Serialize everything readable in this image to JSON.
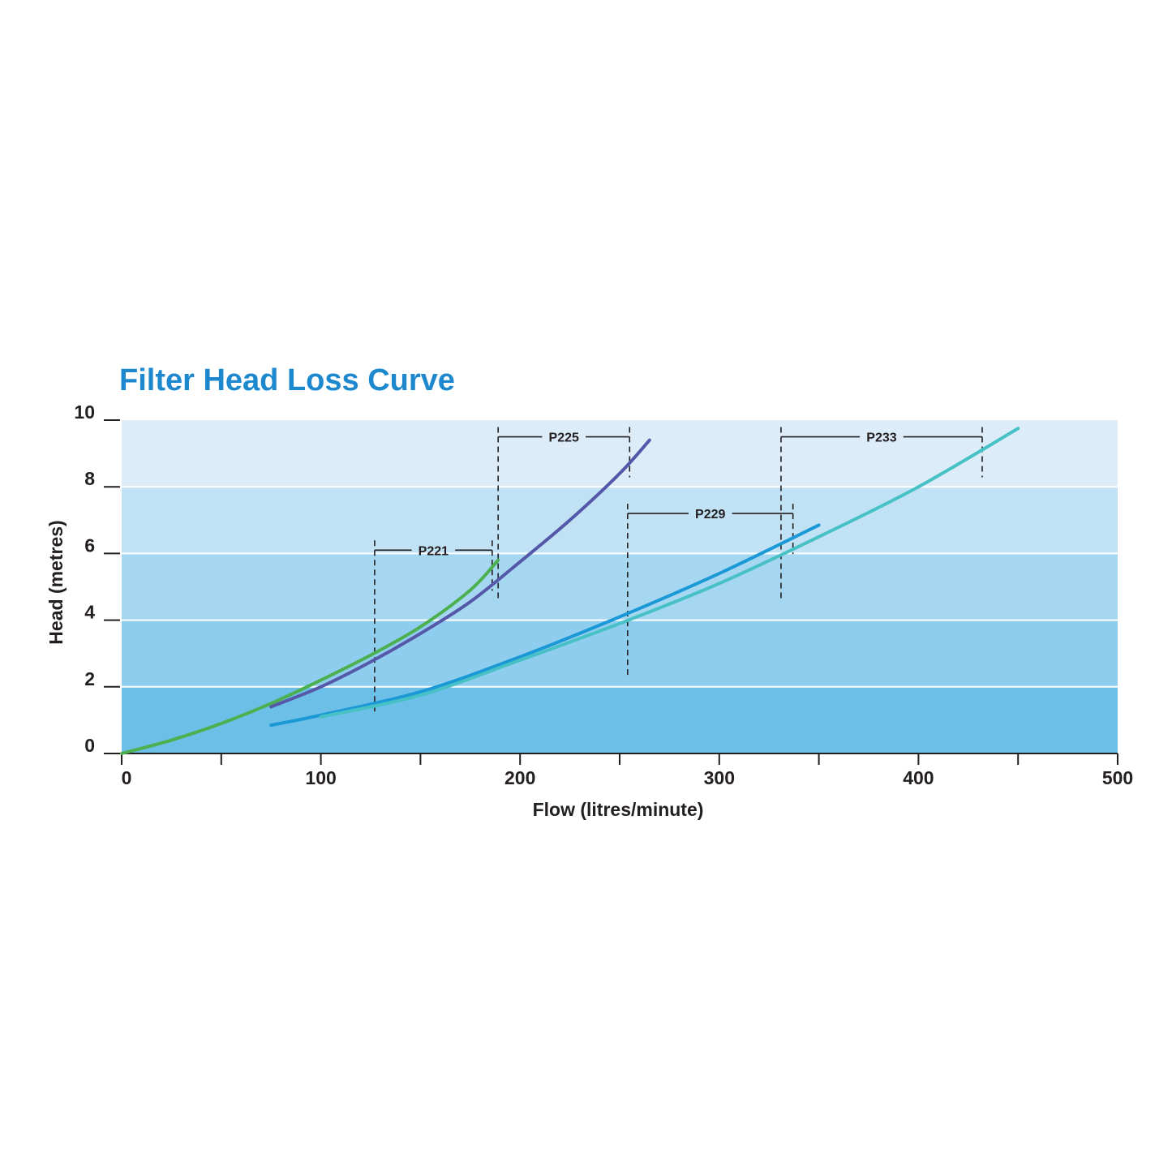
{
  "chart_data": {
    "type": "line",
    "title": "Filter Head Loss Curve",
    "xlabel": "Flow (litres/minute)",
    "ylabel": "Head (metres)",
    "xlim": [
      0,
      500
    ],
    "ylim": [
      0,
      10
    ],
    "x_ticks": [
      "0",
      "100",
      "200",
      "300",
      "400",
      "500"
    ],
    "y_ticks": [
      "0",
      "2",
      "4",
      "6",
      "8",
      "10"
    ],
    "series": [
      {
        "name": "P221",
        "color": "#4caf50",
        "x": [
          0,
          25,
          50,
          75,
          100,
          125,
          150,
          175,
          189
        ],
        "y": [
          0,
          0.4,
          0.9,
          1.5,
          2.2,
          2.95,
          3.8,
          4.9,
          5.8
        ]
      },
      {
        "name": "P225",
        "color": "#5558a8",
        "x": [
          75,
          100,
          125,
          150,
          175,
          200,
          225,
          250,
          265
        ],
        "y": [
          1.4,
          2.0,
          2.75,
          3.6,
          4.55,
          5.75,
          7.0,
          8.4,
          9.4
        ]
      },
      {
        "name": "P229",
        "color": "#1b98d6",
        "x": [
          75,
          100,
          150,
          200,
          250,
          300,
          350
        ],
        "y": [
          0.85,
          1.15,
          1.85,
          2.9,
          4.1,
          5.4,
          6.85
        ]
      },
      {
        "name": "P233",
        "color": "#47c1c6",
        "x": [
          100,
          150,
          200,
          250,
          300,
          350,
          400,
          450
        ],
        "y": [
          1.1,
          1.75,
          2.8,
          3.9,
          5.1,
          6.5,
          8.0,
          9.75
        ]
      }
    ],
    "ranges": [
      {
        "label": "P221",
        "x_start": 127,
        "x_end": 186,
        "y": 6.1
      },
      {
        "label": "P225",
        "x_start": 189,
        "x_end": 255,
        "y": 9.5
      },
      {
        "label": "P229",
        "x_start": 254,
        "x_end": 337,
        "y": 7.2
      },
      {
        "label": "P233",
        "x_start": 331,
        "x_end": 432,
        "y": 9.5
      }
    ],
    "background_bands": [
      "#6cbfe6",
      "#8fcdee",
      "#a6d7f1",
      "#c0e2f4",
      "#dcedf9"
    ],
    "grid": true,
    "legend": "none"
  }
}
